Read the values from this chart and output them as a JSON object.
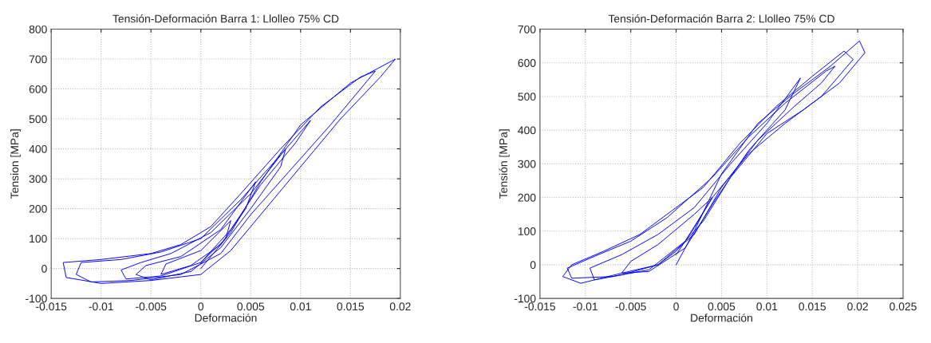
{
  "chart_data": [
    {
      "type": "line",
      "title": "Tensión-Deformación Barra 1: Llolleo 75% CD",
      "xlabel": "Deformación",
      "ylabel": "Tension [MPa]",
      "xlim": [
        -0.015,
        0.02
      ],
      "ylim": [
        -100,
        800
      ],
      "xticks": [
        -0.015,
        -0.01,
        -0.005,
        0,
        0.005,
        0.01,
        0.015,
        0.02
      ],
      "yticks": [
        -100,
        0,
        100,
        200,
        300,
        400,
        500,
        600,
        700,
        800
      ],
      "grid": true,
      "series": [
        {
          "color": "#0000ff",
          "x": [
            0,
            0.003,
            0.006,
            0.01,
            0.015,
            0.0195,
            0.018,
            0.014,
            0.01,
            0.006,
            0.003,
            0,
            -0.005,
            -0.01,
            -0.0135,
            -0.0138,
            -0.01,
            -0.005,
            -0.002,
            0.001,
            0.004,
            0.008,
            0.012,
            0.016,
            0.0175,
            0.0165,
            0.013,
            0.009,
            0.005,
            0.002,
            -0.002,
            -0.007,
            -0.011,
            -0.0125,
            -0.012,
            -0.008,
            -0.004,
            0,
            0.004,
            0.008,
            0.011,
            0.0095,
            0.006,
            0.003,
            0,
            -0.004,
            -0.0075,
            -0.008,
            -0.006,
            -0.003,
            0.001,
            0.005,
            0.0085,
            0.008,
            0.005,
            0.002,
            -0.001,
            -0.005,
            -0.0065,
            -0.0055,
            -0.002,
            0.002,
            0.0055,
            0.0045,
            0.002,
            -0.001,
            -0.004,
            -0.0035,
            0,
            0.003,
            0.0025,
            0
          ],
          "values": [
            0,
            120,
            290,
            480,
            620,
            700,
            640,
            500,
            340,
            180,
            60,
            -20,
            -40,
            -50,
            -30,
            20,
            30,
            50,
            80,
            140,
            250,
            400,
            540,
            640,
            660,
            620,
            480,
            330,
            180,
            50,
            -20,
            -40,
            -45,
            -20,
            20,
            30,
            55,
            100,
            230,
            380,
            495,
            420,
            280,
            130,
            20,
            -25,
            -35,
            -5,
            20,
            50,
            120,
            250,
            400,
            340,
            200,
            70,
            -10,
            -38,
            -20,
            10,
            40,
            130,
            290,
            200,
            80,
            10,
            -20,
            15,
            60,
            160,
            100,
            20
          ]
        }
      ]
    },
    {
      "type": "line",
      "title": "Tensión-Deformación Barra 2: Llolleo 75% CD",
      "xlabel": "Deformación",
      "ylabel": "Tensión [MPa]",
      "xlim": [
        -0.015,
        0.025
      ],
      "ylim": [
        -100,
        700
      ],
      "xticks": [
        -0.015,
        -0.01,
        -0.005,
        0,
        0.005,
        0.01,
        0.015,
        0.02,
        0.025
      ],
      "yticks": [
        -100,
        0,
        100,
        200,
        300,
        400,
        500,
        600,
        700
      ],
      "grid": true,
      "series": [
        {
          "color": "#0000ff",
          "x": [
            0,
            0.002,
            0.005,
            0.009,
            0.013,
            0.017,
            0.0202,
            0.0208,
            0.018,
            0.014,
            0.01,
            0.006,
            0.003,
            0,
            -0.002,
            -0.006,
            -0.0105,
            -0.0125,
            -0.0115,
            -0.008,
            -0.004,
            -0.0005,
            0.003,
            0.007,
            0.011,
            0.015,
            0.0185,
            0.0195,
            0.016,
            0.012,
            0.008,
            0.004,
            0.001,
            -0.003,
            -0.007,
            -0.0115,
            -0.012,
            -0.009,
            -0.005,
            -0.001,
            0.004,
            0.008,
            0.012,
            0.0165,
            0.0175,
            0.016,
            0.013,
            0.009,
            0.005,
            0.002,
            -0.002,
            -0.006,
            -0.009,
            -0.0095,
            -0.006,
            -0.002,
            0.002,
            0.006,
            0.01,
            0.0137,
            0.012,
            0.008,
            0.004,
            0.001,
            -0.003,
            -0.006,
            -0.005,
            -0.002,
            0.002,
            0.004,
            0.002,
            0
          ],
          "values": [
            0,
            100,
            270,
            420,
            510,
            590,
            665,
            630,
            540,
            460,
            390,
            260,
            130,
            40,
            0,
            -25,
            -55,
            -35,
            0,
            40,
            90,
            160,
            230,
            360,
            470,
            560,
            635,
            610,
            500,
            420,
            330,
            200,
            70,
            -15,
            -35,
            -40,
            -10,
            25,
            70,
            140,
            260,
            380,
            480,
            575,
            590,
            540,
            470,
            370,
            230,
            90,
            0,
            -30,
            -45,
            -10,
            30,
            90,
            170,
            300,
            420,
            555,
            460,
            340,
            180,
            50,
            -20,
            -25,
            10,
            60,
            150,
            200,
            110,
            30
          ]
        }
      ]
    }
  ]
}
